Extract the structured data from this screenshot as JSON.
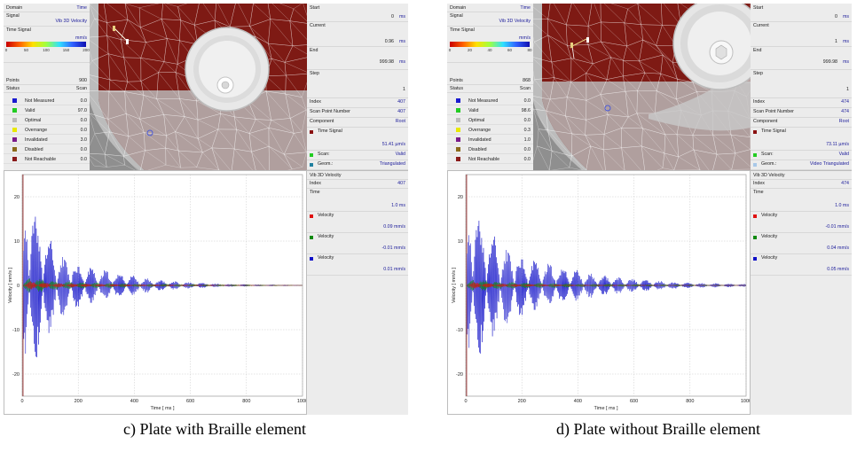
{
  "panels": [
    {
      "id": "c",
      "caption": "c) Plate with Braille element",
      "left_panel": {
        "domain_label": "Domain",
        "domain_value": "Time",
        "signal_label": "Signal",
        "signal_value": "Vib 3D Velocity",
        "time_signal_label": "Time Signal",
        "unit": "mm/s",
        "colorbar_ticks": [
          "0",
          "50",
          "100",
          "150",
          "200"
        ],
        "points_label": "Points",
        "points_value": "900",
        "status_label": "Status",
        "status_value": "Scan",
        "statuses": [
          {
            "label": "Not Measured",
            "value": "0.0",
            "color": "#1a1ad0"
          },
          {
            "label": "Valid",
            "value": "97.0",
            "color": "#22cc22"
          },
          {
            "label": "Optimal",
            "value": "0.0",
            "color": "#bbbbbb"
          },
          {
            "label": "Overrange",
            "value": "0.0",
            "color": "#e8e800"
          },
          {
            "label": "Invalidated",
            "value": "3.0",
            "color": "#7a1a8a"
          },
          {
            "label": "Disabled",
            "value": "0.0",
            "color": "#8a6a1a"
          },
          {
            "label": "Not Reachable",
            "value": "0.0",
            "color": "#8a1a1a"
          }
        ]
      },
      "right_panel": {
        "start_label": "Start",
        "start_value": "0",
        "start_unit": "ms",
        "current_label": "Current",
        "current_value": "0.96",
        "current_unit": "ms",
        "end_label": "End",
        "end_value": "999.98",
        "end_unit": "ms",
        "step_label": "Step",
        "step_value": "1",
        "index_label": "Index",
        "index_value": "407",
        "scan_point_label": "Scan Point Number",
        "scan_point_value": "407",
        "component_label": "Component",
        "component_value": "Root",
        "time_signal_label": "Time Signal",
        "time_signal_value": "51.41 µm/s",
        "scan_label": "Scan:",
        "scan_value": "Valid",
        "geom_label": "Geom.:",
        "geom_value": "Triangulated"
      },
      "chart_panel": {
        "title": "Vib 3D Velocity",
        "index_label": "Index",
        "index_value": "407",
        "time_label": "Time",
        "time_value": "1.0 ms",
        "entries": [
          {
            "label": "Velocity",
            "value": "0.09 mm/s",
            "color": "#e01010"
          },
          {
            "label": "Velocity",
            "value": "-0.01 mm/s",
            "color": "#108a10"
          },
          {
            "label": "Velocity",
            "value": "0.01 mm/s",
            "color": "#1010c8"
          }
        ]
      }
    },
    {
      "id": "d",
      "caption": "d) Plate without Braille element",
      "left_panel": {
        "domain_label": "Domain",
        "domain_value": "Time",
        "signal_label": "Signal",
        "signal_value": "Vib 3D Velocity",
        "time_signal_label": "Time Signal",
        "unit": "mm/s",
        "colorbar_ticks": [
          "0",
          "20",
          "40",
          "60",
          "80"
        ],
        "points_label": "Points",
        "points_value": "868",
        "status_label": "Status",
        "status_value": "Scan",
        "statuses": [
          {
            "label": "Not Measured",
            "value": "0.0",
            "color": "#1a1ad0"
          },
          {
            "label": "Valid",
            "value": "98.6",
            "color": "#22cc22"
          },
          {
            "label": "Optimal",
            "value": "0.0",
            "color": "#bbbbbb"
          },
          {
            "label": "Overrange",
            "value": "0.3",
            "color": "#e8e800"
          },
          {
            "label": "Invalidated",
            "value": "1.0",
            "color": "#7a1a8a"
          },
          {
            "label": "Disabled",
            "value": "0.0",
            "color": "#8a6a1a"
          },
          {
            "label": "Not Reachable",
            "value": "0.0",
            "color": "#8a1a1a"
          }
        ]
      },
      "right_panel": {
        "start_label": "Start",
        "start_value": "0",
        "start_unit": "ms",
        "current_label": "Current",
        "current_value": "1",
        "current_unit": "ms",
        "end_label": "End",
        "end_value": "999.98",
        "end_unit": "ms",
        "step_label": "Step",
        "step_value": "1",
        "index_label": "Index",
        "index_value": "474",
        "scan_point_label": "Scan Point Number",
        "scan_point_value": "474",
        "component_label": "Component",
        "component_value": "Root",
        "time_signal_label": "Time Signal",
        "time_signal_value": "73.11 µm/s",
        "scan_label": "Scan:",
        "scan_value": "Valid",
        "geom_label": "Geom.:",
        "geom_value": "Video Triangulated"
      },
      "chart_panel": {
        "title": "Vib 3D Velocity",
        "index_label": "Index",
        "index_value": "474",
        "time_label": "Time",
        "time_value": "1.0 ms",
        "entries": [
          {
            "label": "Velocity",
            "value": "-0.01 mm/s",
            "color": "#e01010"
          },
          {
            "label": "Velocity",
            "value": "0.04 mm/s",
            "color": "#108a10"
          },
          {
            "label": "Velocity",
            "value": "0.05 mm/s",
            "color": "#1010c8"
          }
        ]
      }
    }
  ],
  "chart_data": [
    {
      "type": "line",
      "xlabel": "Time [ ms ]",
      "ylabel": "Velocity [ mm/s ]",
      "xlim": [
        0,
        1000
      ],
      "ylim": [
        -25,
        25
      ],
      "x_ticks": [
        0,
        200,
        400,
        600,
        800,
        1000
      ],
      "y_ticks": [
        20,
        10,
        0,
        -10,
        -20
      ],
      "grid": true,
      "series": [
        {
          "color": "#1010c8",
          "envelope": {
            "x": [
              0,
              10,
              25,
              50,
              100,
              150,
              200,
              300,
              400,
              500,
              600,
              700,
              800,
              1000
            ],
            "y": [
              0,
              24,
              23,
              18,
              11,
              7,
              5,
              3.5,
              2.2,
              1.2,
              0.7,
              0.4,
              0.25,
              0.1
            ]
          }
        },
        {
          "color": "#108a10",
          "envelope": {
            "x": [
              0,
              25,
              100,
              200,
              400,
              1000
            ],
            "y": [
              0,
              2,
              1.2,
              0.8,
              0.4,
              0.1
            ]
          }
        },
        {
          "color": "#e01010",
          "envelope": {
            "x": [
              0,
              25,
              100,
              200,
              400,
              1000
            ],
            "y": [
              0,
              1,
              0.6,
              0.4,
              0.2,
              0.05
            ]
          }
        }
      ]
    },
    {
      "type": "line",
      "xlabel": "Time [ ms ]",
      "ylabel": "Velocity [ mm/s ]",
      "xlim": [
        0,
        1000
      ],
      "ylim": [
        -25,
        25
      ],
      "x_ticks": [
        0,
        200,
        400,
        600,
        800,
        1000
      ],
      "y_ticks": [
        20,
        10,
        0,
        -10,
        -20
      ],
      "grid": true,
      "series": [
        {
          "color": "#1010c8",
          "envelope": {
            "x": [
              0,
              10,
              25,
              50,
              100,
              150,
              200,
              300,
              400,
              500,
              600,
              700,
              800,
              1000
            ],
            "y": [
              0,
              22,
              21,
              17,
              12,
              9,
              7,
              5,
              3.5,
              2.3,
              1.5,
              1,
              0.6,
              0.3
            ]
          }
        },
        {
          "color": "#108a10",
          "envelope": {
            "x": [
              0,
              25,
              100,
              200,
              400,
              1000
            ],
            "y": [
              0,
              1.5,
              1,
              0.7,
              0.4,
              0.1
            ]
          }
        },
        {
          "color": "#e01010",
          "envelope": {
            "x": [
              0,
              25,
              100,
              200,
              400,
              1000
            ],
            "y": [
              0,
              0.8,
              0.5,
              0.3,
              0.15,
              0.05
            ]
          }
        }
      ]
    }
  ]
}
